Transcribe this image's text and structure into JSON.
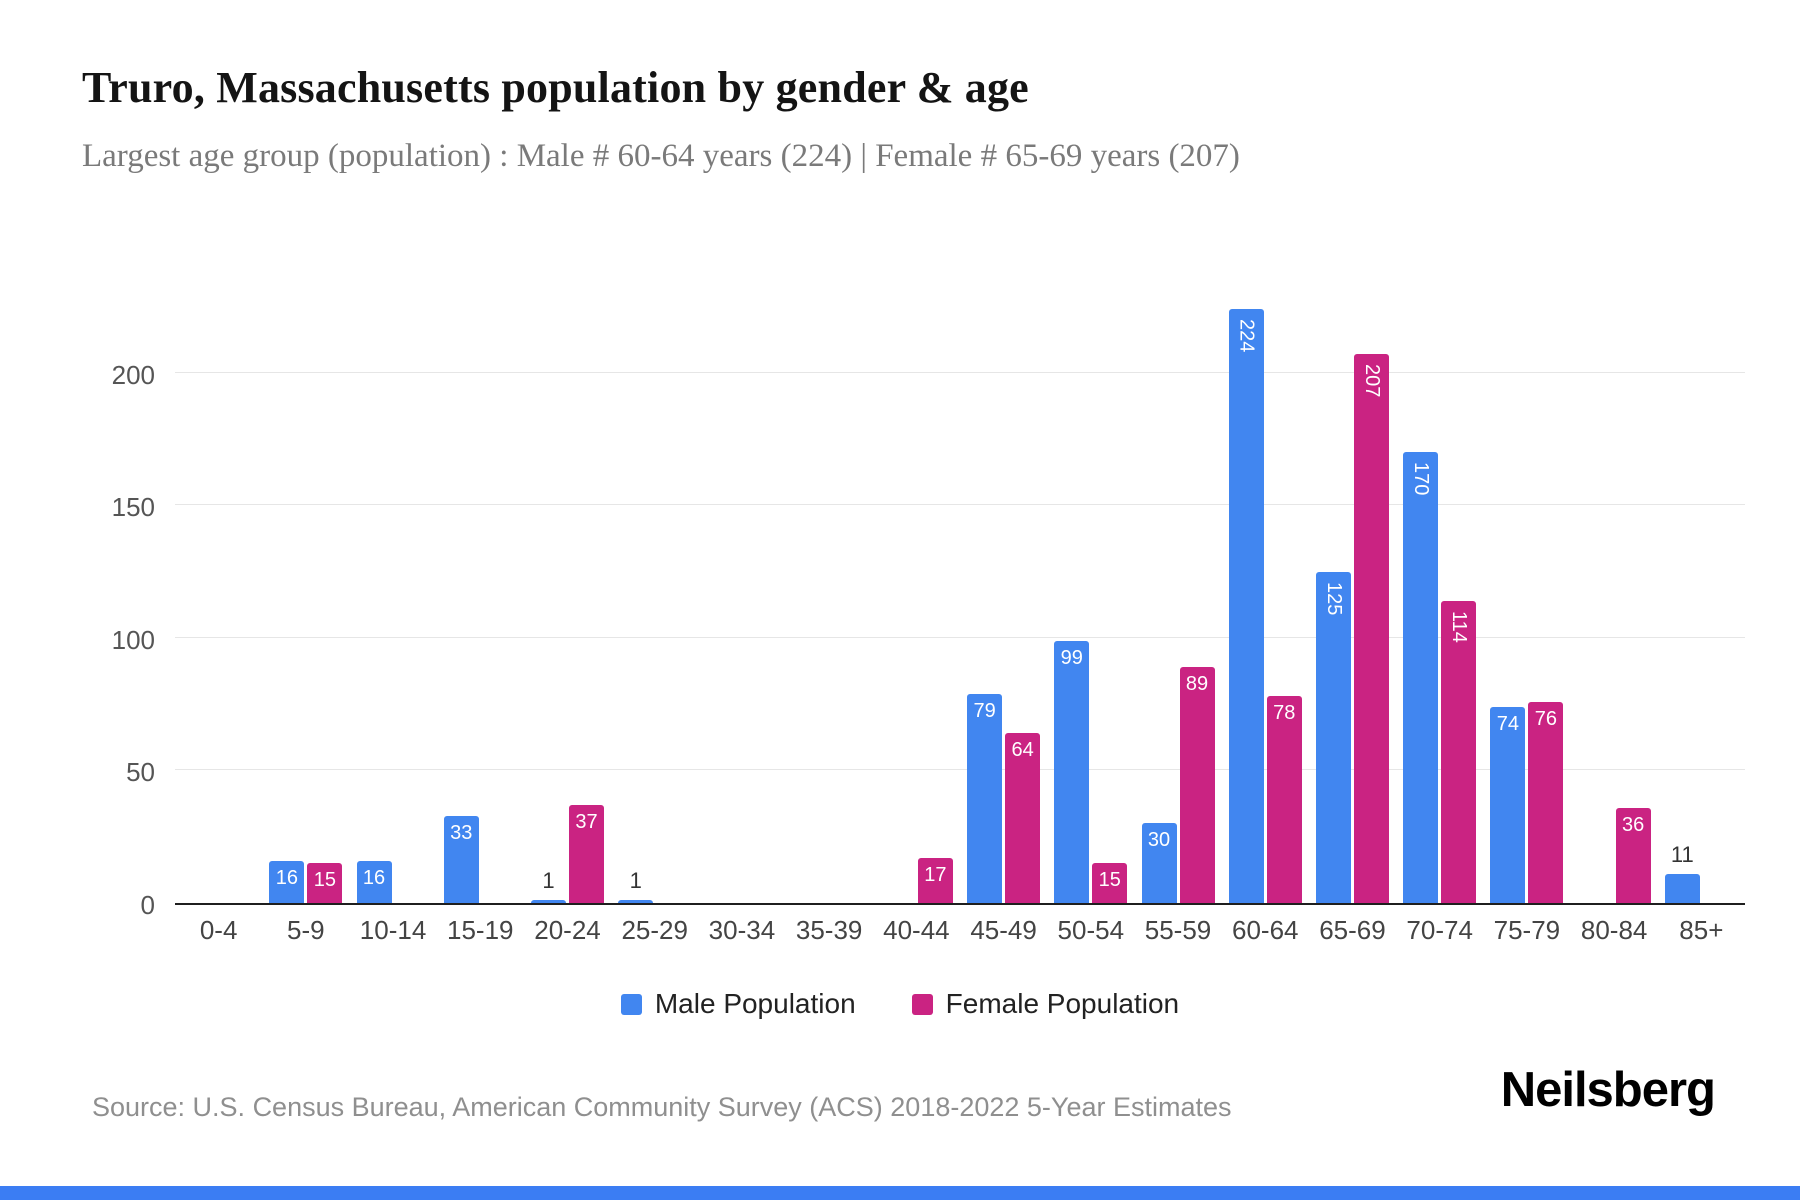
{
  "title": "Truro, Massachusetts population by gender & age",
  "subtitle": "Largest age group (population) : Male # 60-64 years (224) | Female # 65-69 years (207)",
  "source": "Source: U.S. Census Bureau, American Community Survey (ACS) 2018-2022 5-Year Estimates",
  "brand": "Neilsberg",
  "accent_color": "#3b7df3",
  "chart_data": {
    "type": "bar",
    "title": "Truro, Massachusetts population by gender & age",
    "categories": [
      "0-4",
      "5-9",
      "10-14",
      "15-19",
      "20-24",
      "25-29",
      "30-34",
      "35-39",
      "40-44",
      "45-49",
      "50-54",
      "55-59",
      "60-64",
      "65-69",
      "70-74",
      "75-79",
      "80-84",
      "85+"
    ],
    "series": [
      {
        "name": "Male Population",
        "color": "#4186f0",
        "values": [
          0,
          16,
          16,
          33,
          1,
          1,
          0,
          0,
          0,
          79,
          99,
          30,
          224,
          125,
          170,
          74,
          0,
          11
        ]
      },
      {
        "name": "Female Population",
        "color": "#ca2382",
        "values": [
          0,
          15,
          0,
          0,
          37,
          0,
          0,
          0,
          17,
          64,
          15,
          89,
          78,
          207,
          114,
          76,
          36,
          0
        ]
      }
    ],
    "xlabel": "",
    "ylabel": "",
    "yticks": [
      0,
      50,
      100,
      150,
      200
    ],
    "ylim": [
      0,
      235
    ],
    "grid": true,
    "legend_position": "bottom"
  }
}
